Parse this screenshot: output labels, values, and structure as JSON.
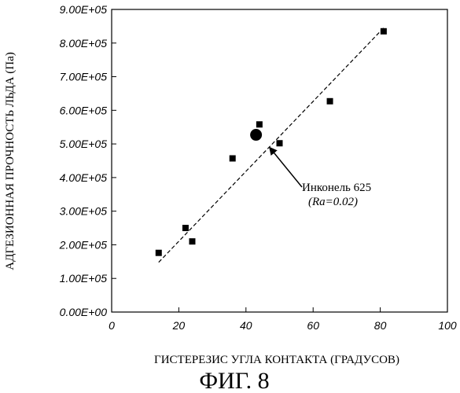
{
  "chart_data": {
    "type": "scatter",
    "xlabel": "ГИСТЕРЕЗИС УГЛА КОНТАКТА (ГРАДУСОВ)",
    "ylabel": "АДГЕЗИОННАЯ ПРОЧНОСТЬ ЛЬДА (Па)",
    "caption": "ФИГ. 8",
    "xlim": [
      0,
      100
    ],
    "ylim": [
      0,
      900000
    ],
    "x_ticks": [
      "0",
      "20",
      "40",
      "60",
      "80",
      "100"
    ],
    "y_ticks": [
      "0.00E+00",
      "1.00E+05",
      "2.00E+05",
      "3.00E+05",
      "4.00E+05",
      "5.00E+05",
      "6.00E+05",
      "7.00E+05",
      "8.00E+05",
      "9.00E+05"
    ],
    "x_tick_values": [
      0,
      20,
      40,
      60,
      80,
      100
    ],
    "y_tick_values": [
      0,
      100000,
      200000,
      300000,
      400000,
      500000,
      600000,
      700000,
      800000,
      900000
    ],
    "points": [
      {
        "x": 14,
        "y": 176000
      },
      {
        "x": 22,
        "y": 250000
      },
      {
        "x": 24,
        "y": 210000
      },
      {
        "x": 36,
        "y": 457000
      },
      {
        "x": 44,
        "y": 558000
      },
      {
        "x": 50,
        "y": 502000
      },
      {
        "x": 65,
        "y": 627000
      },
      {
        "x": 81,
        "y": 835000
      }
    ],
    "highlight": {
      "x": 43,
      "y": 527000
    },
    "trendline": {
      "x": [
        14,
        81
      ],
      "y": [
        148000,
        845000
      ],
      "style": "dashed"
    },
    "annotation": {
      "line1": "Инконель 625",
      "line2": "(Ra=0.02)",
      "arrow_to": {
        "x": 47,
        "y": 490000
      }
    },
    "grid": false,
    "legend": "none"
  }
}
